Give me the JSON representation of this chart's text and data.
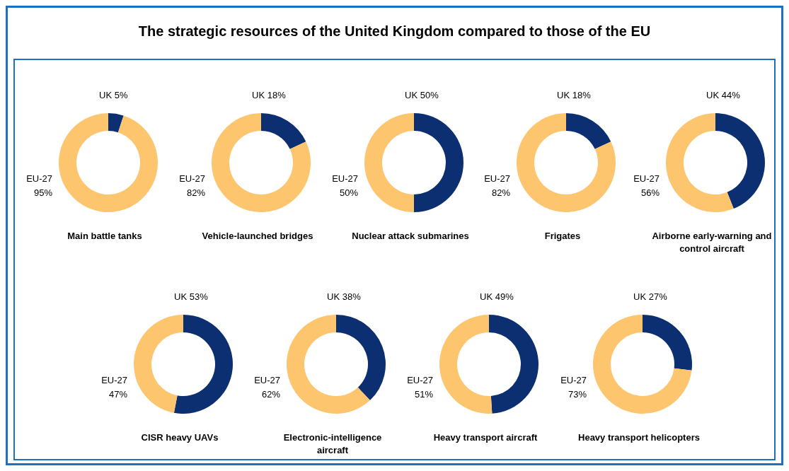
{
  "chart_data": [
    {
      "type": "other",
      "title": "The strategic resources of the United Kingdom compared to those of the EU"
    },
    {
      "type": "donut",
      "title": "Main battle tanks",
      "categories": [
        "UK",
        "EU-27"
      ],
      "values": [
        5,
        95
      ],
      "value_labels": [
        "5%",
        "95%"
      ],
      "colors": [
        "#0b2f70",
        "#fcc56e"
      ]
    },
    {
      "type": "donut",
      "title": "Vehicle-launched bridges",
      "categories": [
        "UK",
        "EU-27"
      ],
      "values": [
        18,
        82
      ],
      "value_labels": [
        "18%",
        "82%"
      ],
      "colors": [
        "#0b2f70",
        "#fcc56e"
      ]
    },
    {
      "type": "donut",
      "title": "Nuclear attack submarines",
      "categories": [
        "UK",
        "EU-27"
      ],
      "values": [
        50,
        50
      ],
      "value_labels": [
        "50%",
        "50%"
      ],
      "colors": [
        "#0b2f70",
        "#fcc56e"
      ]
    },
    {
      "type": "donut",
      "title": "Frigates",
      "categories": [
        "UK",
        "EU-27"
      ],
      "values": [
        18,
        82
      ],
      "value_labels": [
        "18%",
        "82%"
      ],
      "colors": [
        "#0b2f70",
        "#fcc56e"
      ]
    },
    {
      "type": "donut",
      "title": "Airborne early-warning and control aircraft",
      "categories": [
        "UK",
        "EU-27"
      ],
      "values": [
        44,
        56
      ],
      "value_labels": [
        "44%",
        "56%"
      ],
      "colors": [
        "#0b2f70",
        "#fcc56e"
      ]
    },
    {
      "type": "donut",
      "title": "CISR heavy UAVs",
      "categories": [
        "UK",
        "EU-27"
      ],
      "values": [
        53,
        47
      ],
      "value_labels": [
        "53%",
        "47%"
      ],
      "colors": [
        "#0b2f70",
        "#fcc56e"
      ]
    },
    {
      "type": "donut",
      "title": "Electronic-intelligence aircraft",
      "categories": [
        "UK",
        "EU-27"
      ],
      "values": [
        38,
        62
      ],
      "value_labels": [
        "38%",
        "62%"
      ],
      "colors": [
        "#0b2f70",
        "#fcc56e"
      ]
    },
    {
      "type": "donut",
      "title": "Heavy transport aircraft",
      "categories": [
        "UK",
        "EU-27"
      ],
      "values": [
        49,
        51
      ],
      "value_labels": [
        "49%",
        "51%"
      ],
      "colors": [
        "#0b2f70",
        "#fcc56e"
      ]
    },
    {
      "type": "donut",
      "title": "Heavy transport helicopters",
      "categories": [
        "UK",
        "EU-27"
      ],
      "values": [
        27,
        73
      ],
      "value_labels": [
        "27%",
        "73%"
      ],
      "colors": [
        "#0b2f70",
        "#fcc56e"
      ]
    }
  ]
}
